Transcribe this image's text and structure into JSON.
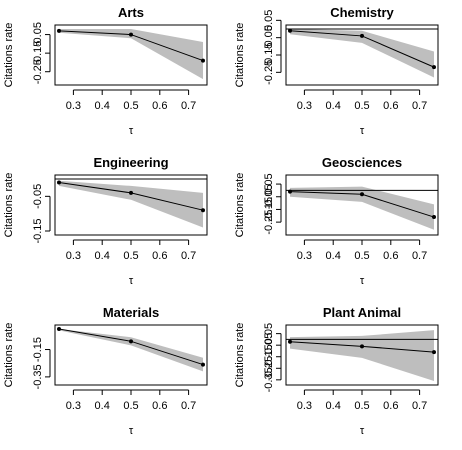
{
  "chart_data": [
    {
      "type": "line",
      "title": "Arts",
      "xlabel": "τ",
      "ylabel": "Citations rate",
      "x": [
        0.25,
        0.5,
        0.75
      ],
      "xlim": [
        0.25,
        0.75
      ],
      "xticks": [
        "0.3",
        "0.4",
        "0.5",
        "0.6",
        "0.7"
      ],
      "ylim": [
        -0.3,
        -0.02
      ],
      "yticks": [
        "-0.05",
        "-0.15",
        "-0.25"
      ],
      "series": [
        {
          "values": [
            -0.03,
            -0.05,
            -0.19
          ],
          "lower": [
            -0.04,
            -0.07,
            -0.29
          ],
          "upper": [
            -0.02,
            -0.02,
            -0.09
          ]
        }
      ],
      "band_color": "#bebebe",
      "hline": null,
      "grid": false
    },
    {
      "type": "line",
      "title": "Chemistry",
      "xlabel": "τ",
      "ylabel": "Citations rate",
      "x": [
        0.25,
        0.5,
        0.75
      ],
      "xlim": [
        0.25,
        0.75
      ],
      "xticks": [
        "0.3",
        "0.4",
        "0.5",
        "0.6",
        "0.7"
      ],
      "ylim": [
        -0.3,
        0.0
      ],
      "yticks": [
        "0.05",
        "-0.05",
        "-0.15",
        "-0.25"
      ],
      "series": [
        {
          "values": [
            -0.01,
            -0.04,
            -0.22
          ],
          "lower": [
            -0.03,
            -0.08,
            -0.28
          ],
          "upper": [
            0.0,
            -0.01,
            -0.13
          ]
        }
      ],
      "band_color": "#bebebe",
      "hline": 0,
      "grid": false
    },
    {
      "type": "line",
      "title": "Engineering",
      "xlabel": "τ",
      "ylabel": "Citations rate",
      "x": [
        0.25,
        0.5,
        0.75
      ],
      "xlim": [
        0.25,
        0.75
      ],
      "xticks": [
        "0.3",
        "0.4",
        "0.5",
        "0.6",
        "0.7"
      ],
      "ylim": [
        -0.15,
        0.0
      ],
      "yticks": [
        "-0.05",
        "-0.15"
      ],
      "series": [
        {
          "values": [
            -0.01,
            -0.04,
            -0.09
          ],
          "lower": [
            -0.02,
            -0.06,
            -0.14
          ],
          "upper": [
            -0.005,
            -0.02,
            -0.04
          ]
        }
      ],
      "band_color": "#bebebe",
      "hline": 0,
      "grid": false
    },
    {
      "type": "line",
      "title": "Geosciences",
      "xlabel": "τ",
      "ylabel": "Citations rate",
      "x": [
        0.25,
        0.5,
        0.75
      ],
      "xlim": [
        0.25,
        0.75
      ],
      "xticks": [
        "0.3",
        "0.4",
        "0.5",
        "0.6",
        "0.7"
      ],
      "ylim": [
        -0.32,
        0.09
      ],
      "yticks": [
        "0.05",
        "-0.05",
        "-0.15",
        "-0.25"
      ],
      "series": [
        {
          "values": [
            -0.01,
            -0.03,
            -0.21
          ],
          "lower": [
            -0.05,
            -0.09,
            -0.31
          ],
          "upper": [
            0.02,
            0.03,
            -0.11
          ]
        }
      ],
      "band_color": "#bebebe",
      "hline": 0,
      "grid": false
    },
    {
      "type": "line",
      "title": "Materials",
      "xlabel": "τ",
      "ylabel": "Citations rate",
      "x": [
        0.25,
        0.5,
        0.75
      ],
      "xlim": [
        0.25,
        0.75
      ],
      "xticks": [
        "0.3",
        "0.4",
        "0.5",
        "0.6",
        "0.7"
      ],
      "ylim": [
        -0.38,
        0.0
      ],
      "yticks": [
        "-0.15",
        "-0.35"
      ],
      "series": [
        {
          "values": [
            0.0,
            -0.09,
            -0.26
          ],
          "lower": [
            -0.01,
            -0.12,
            -0.31
          ],
          "upper": [
            0.0,
            -0.06,
            -0.21
          ]
        }
      ],
      "band_color": "#bebebe",
      "hline": null,
      "grid": false
    },
    {
      "type": "line",
      "title": "Plant Animal",
      "xlabel": "τ",
      "ylabel": "Citations rate",
      "x": [
        0.25,
        0.5,
        0.75
      ],
      "xlim": [
        0.25,
        0.75
      ],
      "xticks": [
        "0.3",
        "0.4",
        "0.5",
        "0.6",
        "0.7"
      ],
      "ylim": [
        -0.36,
        0.09
      ],
      "yticks": [
        "0.05",
        "-0.05",
        "-0.15",
        "-0.25",
        "-0.35"
      ],
      "series": [
        {
          "values": [
            -0.02,
            -0.06,
            -0.11
          ],
          "lower": [
            -0.08,
            -0.16,
            -0.36
          ],
          "upper": [
            0.02,
            0.03,
            0.08
          ]
        }
      ],
      "band_color": "#bebebe",
      "hline": 0,
      "grid": false
    }
  ]
}
